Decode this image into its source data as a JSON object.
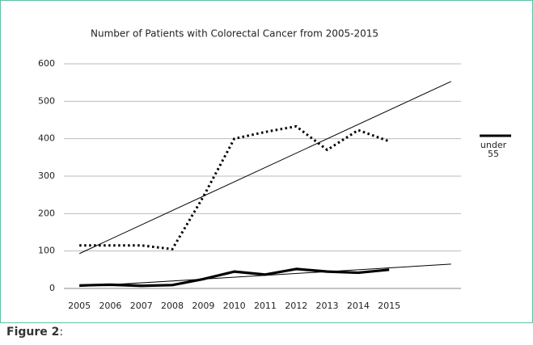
{
  "chart_data": {
    "type": "line",
    "title": "Number of Patients with Colorectal Cancer from 2005-2015",
    "categories": [
      "2005",
      "2006",
      "2007",
      "2008",
      "2009",
      "2010",
      "2011",
      "2012",
      "2013",
      "2014",
      "2015"
    ],
    "series": [
      {
        "color": "#000000",
        "style": "dotted",
        "values": [
          115,
          115,
          115,
          105,
          245,
          400,
          418,
          433,
          370,
          423,
          393
        ]
      },
      {
        "name": "under 55",
        "color": "#000000",
        "style": "solid",
        "values": [
          8,
          10,
          7,
          9,
          25,
          45,
          37,
          52,
          45,
          42,
          50
        ]
      }
    ],
    "trendline": true,
    "ylim": [
      0,
      600
    ],
    "yticks": [
      0,
      100,
      200,
      300,
      400,
      500,
      600
    ],
    "grid": true
  },
  "figure_label": "Figure 2",
  "figure_label_suffix": ":"
}
